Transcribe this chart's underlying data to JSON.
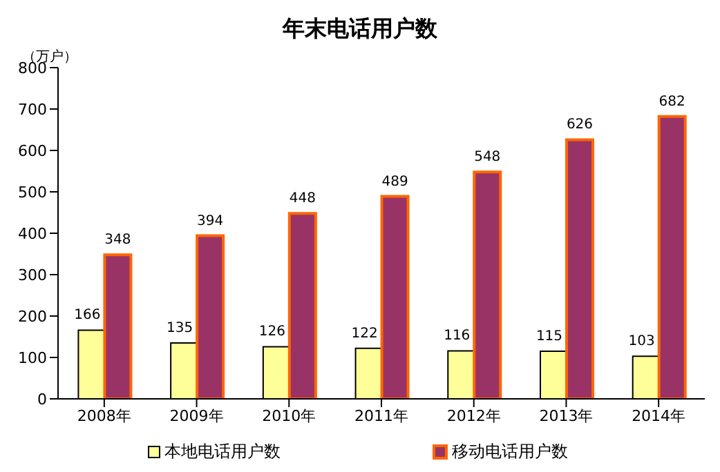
{
  "chart_data": {
    "type": "bar",
    "title": "年末电话用户数",
    "ylabel": "（万户）",
    "categories": [
      "2008年",
      "2009年",
      "2010年",
      "2011年",
      "2012年",
      "2013年",
      "2014年"
    ],
    "series": [
      {
        "name": "本地电话用户数",
        "color": "#ffff99",
        "values": [
          166,
          135,
          126,
          122,
          116,
          115,
          103
        ]
      },
      {
        "name": "移动电话用户数",
        "color": "#993366",
        "values": [
          348,
          394,
          448,
          489,
          548,
          626,
          682
        ]
      }
    ],
    "ylim": [
      0,
      800
    ],
    "yticks": [
      0,
      100,
      200,
      300,
      400,
      500,
      600,
      700,
      800
    ],
    "data_labels": true,
    "legend": "bottom",
    "grid": false
  }
}
